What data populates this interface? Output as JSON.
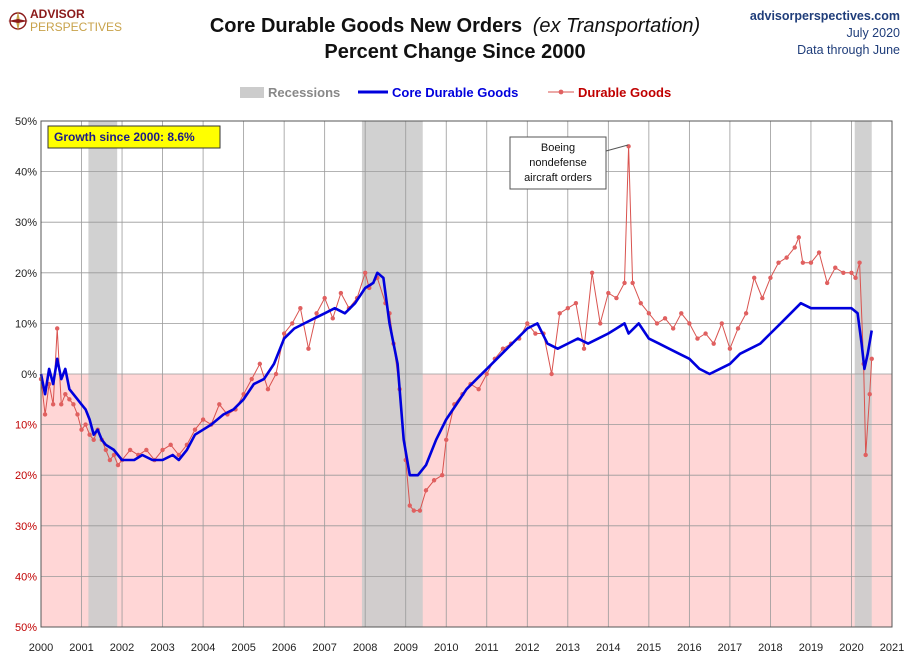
{
  "logo": {
    "line1": "ADVISOR",
    "line2": "PERSPECTIVES"
  },
  "header": {
    "title_main": "Core Durable Goods New Orders",
    "title_italic": "(ex Transportation)",
    "subtitle": "Percent Change Since 2000",
    "source_site": "advisorperspectives.com",
    "source_date": "July 2020",
    "source_note": "Data through June"
  },
  "colors": {
    "core": "#0000dd",
    "durable": "#d9534f",
    "durable_marker": "#e06060",
    "recession": "#cccccc",
    "negative_zone": "#ffd6d6",
    "growth_box": "#ffff00"
  },
  "annotations": {
    "growth_label": "Growth since 2000:  8.6%",
    "boeing_lines": [
      "Boeing",
      "nondefense",
      "aircraft orders"
    ]
  },
  "chart_data": {
    "type": "line",
    "title": "Core Durable Goods New Orders (ex Transportation) Percent Change Since 2000",
    "xlim": [
      2000,
      2021
    ],
    "ylim": [
      -50,
      50
    ],
    "x_ticks": [
      2000,
      2001,
      2002,
      2003,
      2004,
      2005,
      2006,
      2007,
      2008,
      2009,
      2010,
      2011,
      2012,
      2013,
      2014,
      2015,
      2016,
      2017,
      2018,
      2019,
      2020,
      2021
    ],
    "x_tick_labels": [
      "2000",
      "2001",
      "2002",
      "2003",
      "2004",
      "2005",
      "2006",
      "2007",
      "2008",
      "2009",
      "2010",
      "2011",
      "2012",
      "2013",
      "2014",
      "2015",
      "2016",
      "2017",
      "2018",
      "2019",
      "2020",
      "2021"
    ],
    "y_ticks": [
      50,
      40,
      30,
      20,
      10,
      0,
      -10,
      -20,
      -30,
      -40,
      -50
    ],
    "y_tick_labels": [
      "50%",
      "40%",
      "30%",
      "20%",
      "10%",
      "0%",
      "10%",
      "20%",
      "30%",
      "40%",
      "50%"
    ],
    "grid": true,
    "legend_position": "top",
    "legend": [
      "Recessions",
      "Core Durable Goods",
      "Durable Goods"
    ],
    "recessions": [
      [
        2001.17,
        2001.88
      ],
      [
        2007.92,
        2009.42
      ],
      [
        2020.08,
        2020.5
      ]
    ],
    "series": [
      {
        "name": "Core Durable Goods",
        "points": [
          [
            2000.0,
            0
          ],
          [
            2000.1,
            -4
          ],
          [
            2000.2,
            1
          ],
          [
            2000.3,
            -2
          ],
          [
            2000.4,
            3
          ],
          [
            2000.5,
            -1
          ],
          [
            2000.6,
            1
          ],
          [
            2000.7,
            -3
          ],
          [
            2000.8,
            -4
          ],
          [
            2000.9,
            -5
          ],
          [
            2001.0,
            -6
          ],
          [
            2001.1,
            -7
          ],
          [
            2001.2,
            -9
          ],
          [
            2001.3,
            -12
          ],
          [
            2001.4,
            -11
          ],
          [
            2001.5,
            -13
          ],
          [
            2001.6,
            -14
          ],
          [
            2001.8,
            -15
          ],
          [
            2002.0,
            -17
          ],
          [
            2002.3,
            -17
          ],
          [
            2002.5,
            -16
          ],
          [
            2002.75,
            -17
          ],
          [
            2003.0,
            -17
          ],
          [
            2003.25,
            -16
          ],
          [
            2003.4,
            -17
          ],
          [
            2003.6,
            -15
          ],
          [
            2003.8,
            -12
          ],
          [
            2004.0,
            -11
          ],
          [
            2004.2,
            -10
          ],
          [
            2004.5,
            -8
          ],
          [
            2004.75,
            -7
          ],
          [
            2005.0,
            -5
          ],
          [
            2005.25,
            -2
          ],
          [
            2005.5,
            -1
          ],
          [
            2005.75,
            2
          ],
          [
            2006.0,
            7
          ],
          [
            2006.25,
            9
          ],
          [
            2006.5,
            10
          ],
          [
            2006.75,
            11
          ],
          [
            2007.0,
            12
          ],
          [
            2007.25,
            13
          ],
          [
            2007.5,
            12
          ],
          [
            2007.75,
            14
          ],
          [
            2008.0,
            17
          ],
          [
            2008.2,
            18
          ],
          [
            2008.3,
            20
          ],
          [
            2008.45,
            19
          ],
          [
            2008.6,
            10
          ],
          [
            2008.8,
            2
          ],
          [
            2008.95,
            -13
          ],
          [
            2009.1,
            -20
          ],
          [
            2009.3,
            -20
          ],
          [
            2009.5,
            -18
          ],
          [
            2009.75,
            -13
          ],
          [
            2010.0,
            -9
          ],
          [
            2010.25,
            -6
          ],
          [
            2010.5,
            -3
          ],
          [
            2010.75,
            -1
          ],
          [
            2011.0,
            1
          ],
          [
            2011.25,
            3
          ],
          [
            2011.5,
            5
          ],
          [
            2011.75,
            7
          ],
          [
            2012.0,
            9
          ],
          [
            2012.25,
            10
          ],
          [
            2012.5,
            6
          ],
          [
            2012.75,
            5
          ],
          [
            2013.0,
            6
          ],
          [
            2013.25,
            7
          ],
          [
            2013.5,
            6
          ],
          [
            2013.75,
            7
          ],
          [
            2014.0,
            8
          ],
          [
            2014.2,
            9
          ],
          [
            2014.4,
            10
          ],
          [
            2014.5,
            8
          ],
          [
            2014.75,
            10
          ],
          [
            2015.0,
            7
          ],
          [
            2015.25,
            6
          ],
          [
            2015.5,
            5
          ],
          [
            2015.75,
            4
          ],
          [
            2016.0,
            3
          ],
          [
            2016.25,
            1
          ],
          [
            2016.5,
            0
          ],
          [
            2016.75,
            1
          ],
          [
            2017.0,
            2
          ],
          [
            2017.25,
            4
          ],
          [
            2017.5,
            5
          ],
          [
            2017.75,
            6
          ],
          [
            2018.0,
            8
          ],
          [
            2018.25,
            10
          ],
          [
            2018.5,
            12
          ],
          [
            2018.75,
            14
          ],
          [
            2019.0,
            13
          ],
          [
            2019.25,
            13
          ],
          [
            2019.5,
            13
          ],
          [
            2019.75,
            13
          ],
          [
            2020.0,
            13
          ],
          [
            2020.15,
            12
          ],
          [
            2020.25,
            6
          ],
          [
            2020.32,
            1
          ],
          [
            2020.4,
            4
          ],
          [
            2020.5,
            8.6
          ]
        ]
      },
      {
        "name": "Durable Goods",
        "points": [
          [
            2000.0,
            -1
          ],
          [
            2000.1,
            -8
          ],
          [
            2000.2,
            -2
          ],
          [
            2000.3,
            -6
          ],
          [
            2000.4,
            9
          ],
          [
            2000.5,
            -6
          ],
          [
            2000.6,
            -4
          ],
          [
            2000.7,
            -5
          ],
          [
            2000.8,
            -6
          ],
          [
            2000.9,
            -8
          ],
          [
            2001.0,
            -11
          ],
          [
            2001.1,
            -10
          ],
          [
            2001.2,
            -12
          ],
          [
            2001.3,
            -13
          ],
          [
            2001.4,
            -11
          ],
          [
            2001.5,
            -13
          ],
          [
            2001.6,
            -15
          ],
          [
            2001.7,
            -17
          ],
          [
            2001.8,
            -16
          ],
          [
            2001.9,
            -18
          ],
          [
            2002.0,
            -17
          ],
          [
            2002.2,
            -15
          ],
          [
            2002.4,
            -16
          ],
          [
            2002.6,
            -15
          ],
          [
            2002.8,
            -17
          ],
          [
            2003.0,
            -15
          ],
          [
            2003.2,
            -14
          ],
          [
            2003.4,
            -16
          ],
          [
            2003.6,
            -14
          ],
          [
            2003.8,
            -11
          ],
          [
            2004.0,
            -9
          ],
          [
            2004.2,
            -10
          ],
          [
            2004.4,
            -6
          ],
          [
            2004.6,
            -8
          ],
          [
            2004.8,
            -7
          ],
          [
            2005.0,
            -4
          ],
          [
            2005.2,
            -1
          ],
          [
            2005.4,
            2
          ],
          [
            2005.6,
            -3
          ],
          [
            2005.8,
            0
          ],
          [
            2006.0,
            8
          ],
          [
            2006.2,
            10
          ],
          [
            2006.4,
            13
          ],
          [
            2006.6,
            5
          ],
          [
            2006.8,
            12
          ],
          [
            2007.0,
            15
          ],
          [
            2007.2,
            11
          ],
          [
            2007.4,
            16
          ],
          [
            2007.6,
            13
          ],
          [
            2007.8,
            15
          ],
          [
            2008.0,
            20
          ],
          [
            2008.1,
            17
          ],
          [
            2008.3,
            19
          ],
          [
            2008.5,
            14
          ],
          [
            2008.6,
            12
          ],
          [
            2008.7,
            6
          ],
          [
            2008.85,
            -3
          ],
          [
            2009.0,
            -17
          ],
          [
            2009.1,
            -26
          ],
          [
            2009.2,
            -27
          ],
          [
            2009.35,
            -27
          ],
          [
            2009.5,
            -23
          ],
          [
            2009.7,
            -21
          ],
          [
            2009.9,
            -20
          ],
          [
            2010.0,
            -13
          ],
          [
            2010.2,
            -6
          ],
          [
            2010.4,
            -4
          ],
          [
            2010.6,
            -2
          ],
          [
            2010.8,
            -3
          ],
          [
            2011.0,
            0
          ],
          [
            2011.2,
            3
          ],
          [
            2011.4,
            5
          ],
          [
            2011.6,
            6
          ],
          [
            2011.8,
            7
          ],
          [
            2012.0,
            10
          ],
          [
            2012.2,
            8
          ],
          [
            2012.4,
            8
          ],
          [
            2012.6,
            0
          ],
          [
            2012.8,
            12
          ],
          [
            2013.0,
            13
          ],
          [
            2013.2,
            14
          ],
          [
            2013.4,
            5
          ],
          [
            2013.6,
            20
          ],
          [
            2013.8,
            10
          ],
          [
            2014.0,
            16
          ],
          [
            2014.2,
            15
          ],
          [
            2014.4,
            18
          ],
          [
            2014.5,
            45
          ],
          [
            2014.6,
            18
          ],
          [
            2014.8,
            14
          ],
          [
            2015.0,
            12
          ],
          [
            2015.2,
            10
          ],
          [
            2015.4,
            11
          ],
          [
            2015.6,
            9
          ],
          [
            2015.8,
            12
          ],
          [
            2016.0,
            10
          ],
          [
            2016.2,
            7
          ],
          [
            2016.4,
            8
          ],
          [
            2016.6,
            6
          ],
          [
            2016.8,
            10
          ],
          [
            2017.0,
            5
          ],
          [
            2017.2,
            9
          ],
          [
            2017.4,
            12
          ],
          [
            2017.6,
            19
          ],
          [
            2017.8,
            15
          ],
          [
            2018.0,
            19
          ],
          [
            2018.2,
            22
          ],
          [
            2018.4,
            23
          ],
          [
            2018.6,
            25
          ],
          [
            2018.7,
            27
          ],
          [
            2018.8,
            22
          ],
          [
            2019.0,
            22
          ],
          [
            2019.2,
            24
          ],
          [
            2019.4,
            18
          ],
          [
            2019.6,
            21
          ],
          [
            2019.8,
            20
          ],
          [
            2020.0,
            20
          ],
          [
            2020.1,
            19
          ],
          [
            2020.2,
            22
          ],
          [
            2020.3,
            2
          ],
          [
            2020.35,
            -16
          ],
          [
            2020.45,
            -4
          ],
          [
            2020.5,
            3
          ]
        ]
      }
    ]
  }
}
